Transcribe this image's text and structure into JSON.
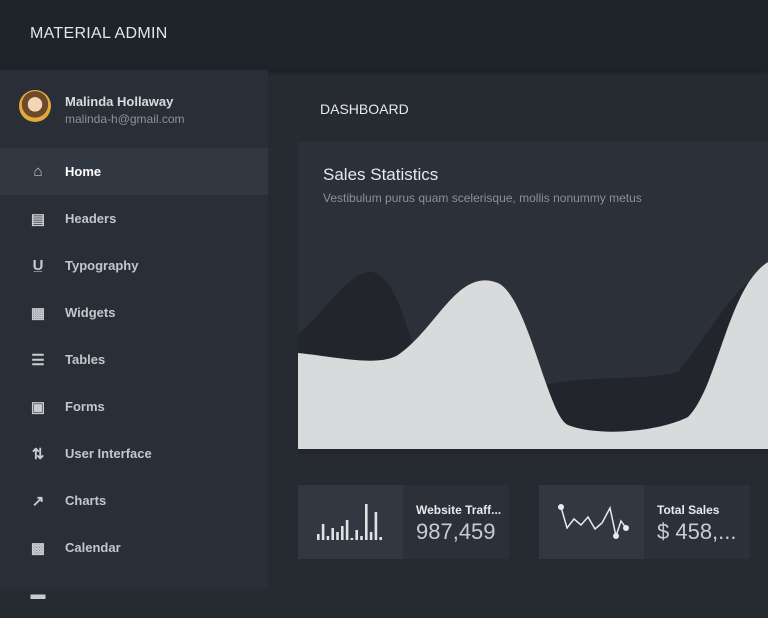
{
  "header": {
    "brand": "MATERIAL ADMIN"
  },
  "profile": {
    "name": "Malinda Hollaway",
    "email": "malinda-h@gmail.com"
  },
  "sidebar": {
    "items": [
      {
        "label": "Home",
        "icon": "home-icon",
        "glyph": "⌂",
        "active": true
      },
      {
        "label": "Headers",
        "icon": "headers-icon",
        "glyph": "▤"
      },
      {
        "label": "Typography",
        "icon": "typography-icon",
        "glyph": "U̲"
      },
      {
        "label": "Widgets",
        "icon": "widgets-icon",
        "glyph": "▦"
      },
      {
        "label": "Tables",
        "icon": "tables-icon",
        "glyph": "☰"
      },
      {
        "label": "Forms",
        "icon": "forms-icon",
        "glyph": "▣"
      },
      {
        "label": "User Interface",
        "icon": "user-interface-icon",
        "glyph": "⇅"
      },
      {
        "label": "Charts",
        "icon": "charts-icon",
        "glyph": "↗"
      },
      {
        "label": "Calendar",
        "icon": "calendar-icon",
        "glyph": "▩"
      },
      {
        "label": "",
        "icon": "photo-gallery-icon",
        "glyph": "▬"
      }
    ]
  },
  "main": {
    "title": "DASHBOARD",
    "sales": {
      "title": "Sales Statistics",
      "subtitle": "Vestibulum purus quam scelerisque, mollis nonummy metus"
    },
    "stats": [
      {
        "label": "Website Traff...",
        "value": "987,459",
        "bars": [
          6,
          16,
          4,
          12,
          8,
          14,
          20,
          2,
          10,
          4,
          36,
          8,
          28,
          3
        ]
      },
      {
        "label": "Total Sales",
        "value": "$ 458,..."
      }
    ]
  },
  "colors": {
    "light_area": "#d9dadb",
    "dark_area": "#22262c"
  }
}
